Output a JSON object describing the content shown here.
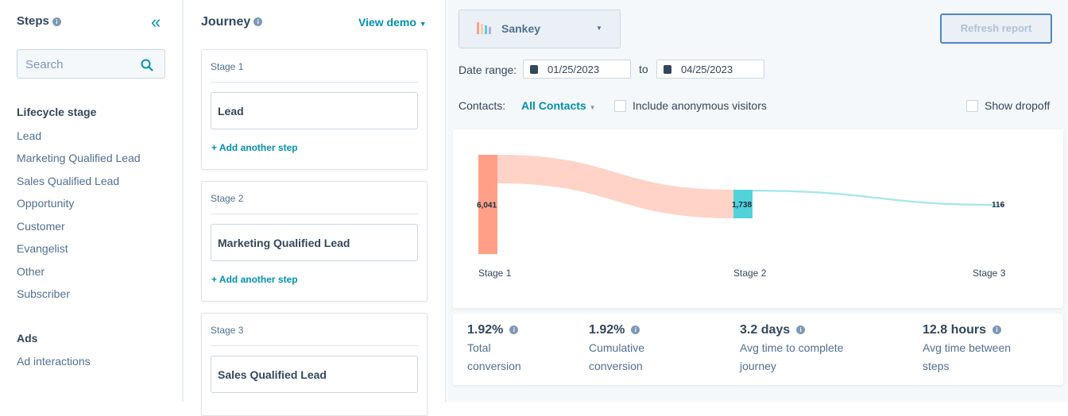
{
  "steps_panel": {
    "title": "Steps",
    "search_placeholder": "Search",
    "sections": [
      {
        "title": "Lifecycle stage",
        "items": [
          "Lead",
          "Marketing Qualified Lead",
          "Sales Qualified Lead",
          "Opportunity",
          "Customer",
          "Evangelist",
          "Other",
          "Subscriber"
        ]
      },
      {
        "title": "Ads",
        "items": [
          "Ad interactions"
        ]
      }
    ]
  },
  "journey": {
    "title": "Journey",
    "view_demo": "View demo",
    "add_step": "Add another step",
    "stages": [
      {
        "label": "Stage 1",
        "step": "Lead"
      },
      {
        "label": "Stage 2",
        "step": "Marketing Qualified Lead"
      },
      {
        "label": "Stage 3",
        "step": "Sales Qualified Lead"
      }
    ]
  },
  "report": {
    "chart_type": "Sankey",
    "refresh": "Refresh report",
    "date_range_label": "Date range:",
    "date_from": "01/25/2023",
    "to_label": "to",
    "date_to": "04/25/2023",
    "contacts_label": "Contacts:",
    "contacts_value": "All Contacts",
    "include_anonymous": "Include anonymous visitors",
    "show_dropoff": "Show dropoff"
  },
  "chart_data": {
    "type": "sankey",
    "nodes": [
      {
        "label": "Stage 1",
        "value": 6041,
        "display": "6,041",
        "color": "#ff9f87"
      },
      {
        "label": "Stage 2",
        "value": 1738,
        "display": "1,738",
        "color": "#51d3d9"
      },
      {
        "label": "Stage 3",
        "value": 116,
        "display": "116",
        "color": "#b9a7e8"
      }
    ],
    "links": [
      {
        "from": 0,
        "to": 1,
        "value": 1738,
        "color": "#ffd3c7"
      },
      {
        "from": 1,
        "to": 2,
        "value": 116,
        "color": "#a8e6ea"
      }
    ]
  },
  "stats": [
    {
      "value": "1.92%",
      "label": "Total conversion"
    },
    {
      "value": "1.92%",
      "label": "Cumulative conversion"
    },
    {
      "value": "3.2 days",
      "label": "Avg time to complete journey"
    },
    {
      "value": "12.8 hours",
      "label": "Avg time between steps"
    }
  ]
}
